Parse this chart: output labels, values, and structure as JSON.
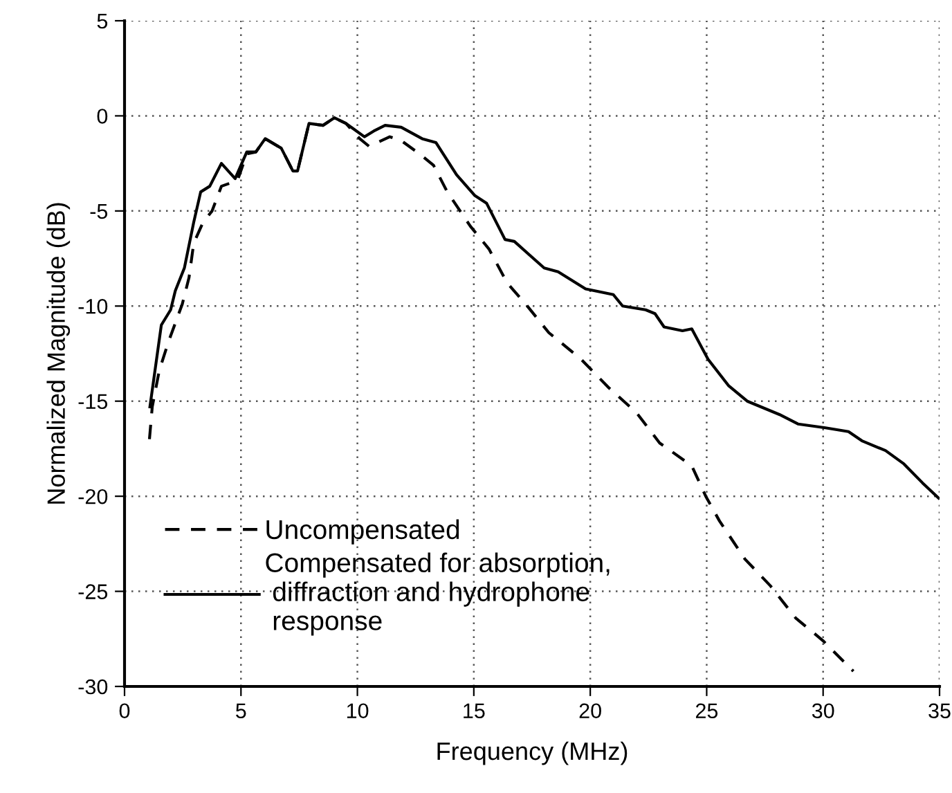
{
  "chart_data": {
    "type": "line",
    "xlabel": "Frequency (MHz)",
    "ylabel": "Normalized Magnitude (dB)",
    "xlim": [
      0,
      35
    ],
    "ylim": [
      -30,
      5
    ],
    "xticks": [
      0,
      5,
      10,
      15,
      20,
      25,
      30,
      35
    ],
    "yticks": [
      -30,
      -25,
      -20,
      -15,
      -10,
      -5,
      0,
      5
    ],
    "grid": true,
    "legend": "bottom left",
    "marker": "none",
    "series": [
      {
        "name": "Uncompensated",
        "color": "#000000",
        "line_style": "dashed",
        "x": [
          1.07,
          1.19,
          1.49,
          1.88,
          2.48,
          2.77,
          2.97,
          3.37,
          3.76,
          4.16,
          4.85,
          5.25,
          5.64,
          6.04,
          6.73,
          7.23,
          7.43,
          7.92,
          8.52,
          9.01,
          9.51,
          10.1,
          10.5,
          11.39,
          11.88,
          12.67,
          13.27,
          13.86,
          14.85,
          15.65,
          16.44,
          17.23,
          18.22,
          19.61,
          20.8,
          21.98,
          22.98,
          24.36,
          24.96,
          25.55,
          26.64,
          27.73,
          28.82,
          30.0,
          31.3
        ],
        "values": [
          -17.0,
          -15.3,
          -13.4,
          -11.9,
          -9.9,
          -8.5,
          -6.7,
          -5.6,
          -5.0,
          -3.7,
          -3.4,
          -2.0,
          -1.9,
          -1.2,
          -1.7,
          -2.9,
          -2.9,
          -0.4,
          -0.5,
          -0.1,
          -0.4,
          -1.2,
          -1.6,
          -1.1,
          -1.3,
          -2.0,
          -2.6,
          -4.0,
          -5.8,
          -7.0,
          -8.8,
          -9.9,
          -11.4,
          -12.8,
          -14.3,
          -15.6,
          -17.2,
          -18.4,
          -20.0,
          -21.3,
          -23.3,
          -24.7,
          -26.4,
          -27.6,
          -29.2
        ]
      },
      {
        "name": "Compensated for absorption,\n diffraction and hydrophone\n response",
        "color": "#000000",
        "line_style": "solid",
        "x": [
          1.09,
          1.58,
          1.98,
          2.18,
          2.57,
          2.97,
          3.27,
          3.66,
          4.16,
          4.75,
          5.25,
          5.64,
          6.04,
          6.73,
          7.23,
          7.43,
          7.92,
          8.52,
          9.01,
          9.51,
          10.3,
          10.7,
          11.19,
          11.88,
          12.78,
          13.37,
          14.26,
          15.05,
          15.55,
          16.34,
          16.74,
          18.02,
          18.62,
          19.8,
          20.99,
          21.39,
          22.38,
          22.78,
          23.17,
          23.96,
          24.36,
          25.06,
          25.95,
          26.74,
          28.12,
          28.92,
          30.1,
          31.09,
          31.69,
          32.68,
          33.47,
          34.27,
          34.96
        ],
        "values": [
          -15.3,
          -11.0,
          -10.2,
          -9.2,
          -8.0,
          -5.6,
          -4.0,
          -3.7,
          -2.5,
          -3.3,
          -1.9,
          -1.9,
          -1.2,
          -1.7,
          -2.9,
          -2.9,
          -0.4,
          -0.5,
          -0.1,
          -0.4,
          -1.1,
          -0.8,
          -0.5,
          -0.6,
          -1.2,
          -1.4,
          -3.1,
          -4.2,
          -4.6,
          -6.5,
          -6.6,
          -8.0,
          -8.2,
          -9.1,
          -9.4,
          -10.0,
          -10.2,
          -10.4,
          -11.1,
          -11.3,
          -11.2,
          -12.8,
          -14.2,
          -15.0,
          -15.7,
          -16.2,
          -16.4,
          -16.6,
          -17.1,
          -17.6,
          -18.3,
          -19.3,
          -20.1
        ]
      }
    ]
  }
}
